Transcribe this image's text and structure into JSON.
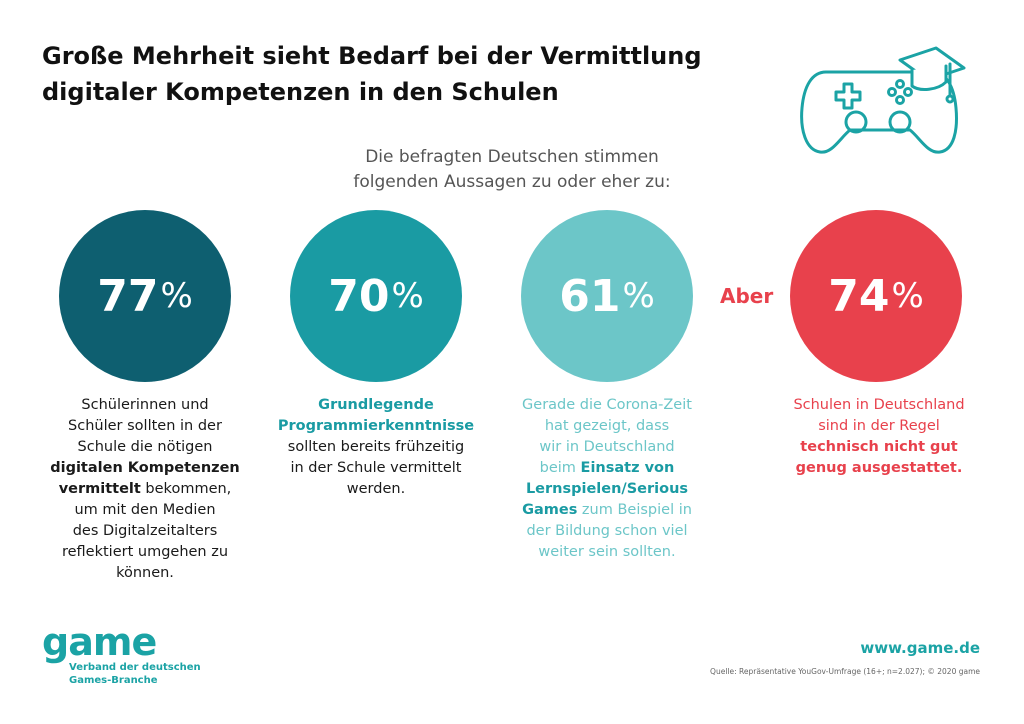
{
  "title": {
    "line1": "Große Mehrheit sieht Bedarf bei der Vermittlung",
    "line2": "digitaler Kompetenzen in den Schulen"
  },
  "subtitle": {
    "line1": "Die befragten Deutschen stimmen",
    "line2": "folgenden Aussagen zu oder eher zu:"
  },
  "stats": [
    {
      "value": "77",
      "unit": "%",
      "color": "#0e5f70",
      "text_color": "#1a1a1a",
      "lines": [
        [
          {
            "t": "Schülerinnen und",
            "b": false
          }
        ],
        [
          {
            "t": "Schüler sollten in der",
            "b": false
          }
        ],
        [
          {
            "t": "Schule die nötigen",
            "b": false
          }
        ],
        [
          {
            "t": "digitalen Kompetenzen",
            "b": true
          }
        ],
        [
          {
            "t": "vermittelt",
            "b": true
          },
          {
            "t": " bekommen,",
            "b": false
          }
        ],
        [
          {
            "t": "um mit den Medien",
            "b": false
          }
        ],
        [
          {
            "t": "des Digitalzeitalters",
            "b": false
          }
        ],
        [
          {
            "t": "reflektiert umgehen zu",
            "b": false
          }
        ],
        [
          {
            "t": "können.",
            "b": false
          }
        ]
      ]
    },
    {
      "value": "70",
      "unit": "%",
      "color": "#1a9ba3",
      "text_color": "#1a1a1a",
      "bold_color": "#1a9ba3",
      "lines": [
        [
          {
            "t": "Grundlegende",
            "b": true
          }
        ],
        [
          {
            "t": "Programmierkenntnisse",
            "b": true
          }
        ],
        [
          {
            "t": "sollten bereits frühzeitig",
            "b": false
          }
        ],
        [
          {
            "t": "in der Schule vermittelt",
            "b": false
          }
        ],
        [
          {
            "t": "werden.",
            "b": false
          }
        ]
      ]
    },
    {
      "value": "61",
      "unit": "%",
      "color": "#6cc6c8",
      "text_color": "#6cc6c8",
      "bold_color": "#1a9ba3",
      "lines": [
        [
          {
            "t": "Gerade die Corona-Zeit",
            "b": false
          }
        ],
        [
          {
            "t": "hat gezeigt, dass",
            "b": false
          }
        ],
        [
          {
            "t": "wir in Deutschland",
            "b": false
          }
        ],
        [
          {
            "t": "beim ",
            "b": false
          },
          {
            "t": "Einsatz von",
            "b": true
          }
        ],
        [
          {
            "t": "Lernspielen/Serious",
            "b": true
          }
        ],
        [
          {
            "t": "Games",
            "b": true
          },
          {
            "t": " zum Beispiel in",
            "b": false
          }
        ],
        [
          {
            "t": "der Bildung schon viel",
            "b": false
          }
        ],
        [
          {
            "t": "weiter sein sollten.",
            "b": false
          }
        ]
      ]
    },
    {
      "value": "74",
      "unit": "%",
      "color": "#e8414c",
      "text_color": "#e8414c",
      "bold_color": "#e8414c",
      "lines": [
        [
          {
            "t": "Schulen in Deutschland",
            "b": false
          }
        ],
        [
          {
            "t": "sind in der Regel",
            "b": false
          }
        ],
        [
          {
            "t": "technisch nicht gut",
            "b": true
          }
        ],
        [
          {
            "t": "genug ausgestattet.",
            "b": true
          }
        ]
      ]
    }
  ],
  "aber_label": "Aber",
  "logo": {
    "word": "game",
    "sub1": "Verband der deutschen",
    "sub2": "Games-Branche"
  },
  "website": "www.game.de",
  "source": "Quelle: Repräsentative YouGov-Umfrage (16+; n=2.027); © 2020 game",
  "icon": "gamepad-with-graduation-cap-icon"
}
